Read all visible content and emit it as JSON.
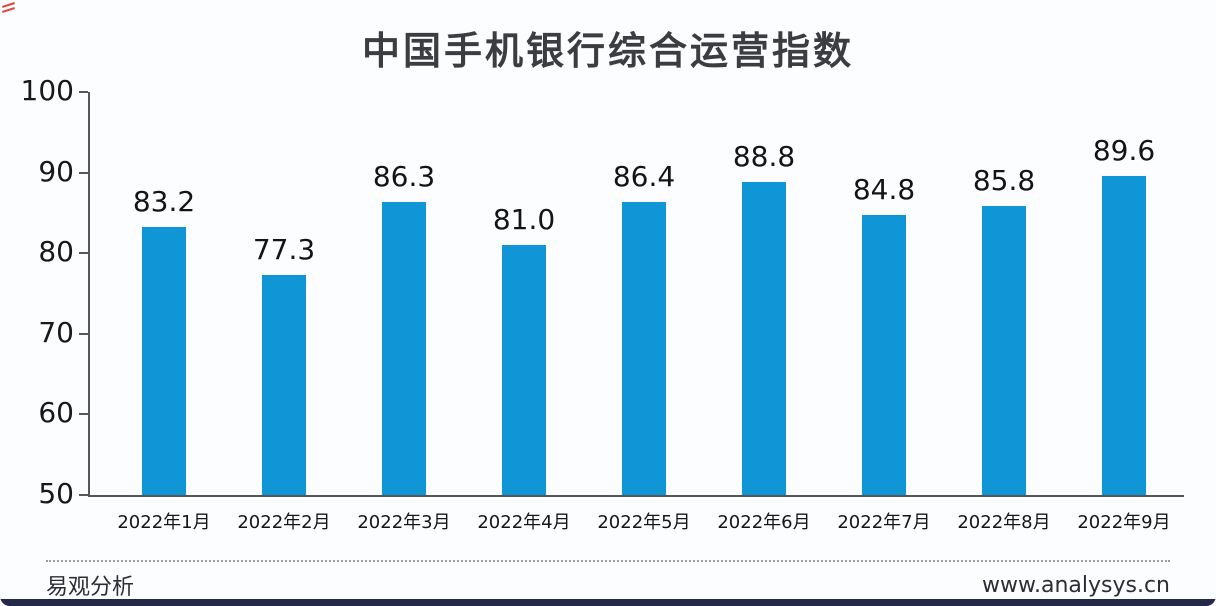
{
  "chart_data": {
    "type": "bar",
    "title": "中国手机银行综合运营指数",
    "categories": [
      "2022年1月",
      "2022年2月",
      "2022年3月",
      "2022年4月",
      "2022年5月",
      "2022年6月",
      "2022年7月",
      "2022年8月",
      "2022年9月"
    ],
    "values": [
      83.2,
      77.3,
      86.3,
      81.0,
      86.4,
      88.8,
      84.8,
      85.8,
      89.6
    ],
    "xlabel": "",
    "ylabel": "",
    "ylim": [
      50,
      100
    ],
    "yticks": [
      100,
      90,
      80,
      70,
      60,
      50
    ],
    "bar_color": "#1095d6",
    "grid": false,
    "legend": "none",
    "value_labels": true
  },
  "footer": {
    "brand": "易观分析",
    "website": "www.analysys.cn"
  },
  "colors": {
    "axis": "#56575b",
    "title_text": "#3c3d40",
    "bottom_strip": "#242948",
    "corner_mark": "#d8392e"
  }
}
